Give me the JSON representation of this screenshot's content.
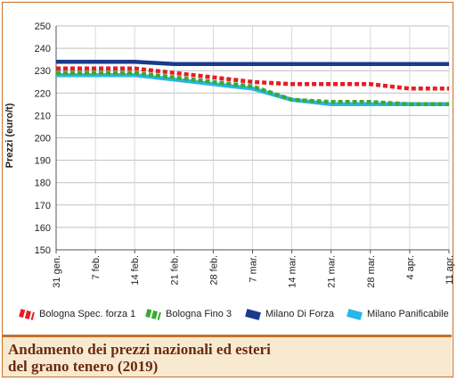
{
  "caption": "Andamento dei prezzi nazionali ed esteri\ndel grano tenero (2019)",
  "chart_data": {
    "type": "line",
    "categories": [
      "31 gen.",
      "7 feb.",
      "14 feb.",
      "21 feb.",
      "28 feb.",
      "7 mar.",
      "14 mar.",
      "21 mar.",
      "28 mar.",
      "4 apr.",
      "11 apr."
    ],
    "ylabel": "Prezzi (euro/t)",
    "xlabel": "",
    "ylim": [
      150,
      250
    ],
    "yticks": [
      150,
      160,
      170,
      180,
      190,
      200,
      210,
      220,
      230,
      240,
      250
    ],
    "grid": true,
    "legend_position": "bottom",
    "series": [
      {
        "name": "Bologna Spec. forza 1",
        "color": "#e31e24",
        "style": "dotted",
        "values": [
          231,
          231,
          231,
          229,
          227,
          225,
          224,
          224,
          224,
          222,
          222
        ]
      },
      {
        "name": "Bologna Fino 3",
        "color": "#3aa935",
        "style": "dotted",
        "values": [
          229,
          229,
          229,
          227,
          225,
          223,
          217,
          216,
          216,
          215,
          215
        ]
      },
      {
        "name": "Milano Di Forza",
        "color": "#1a3a8c",
        "style": "solid",
        "values": [
          234,
          234,
          234,
          233,
          233,
          233,
          233,
          233,
          233,
          233,
          233
        ]
      },
      {
        "name": "Milano Panificabile",
        "color": "#29b6e8",
        "style": "solid",
        "values": [
          228,
          228,
          228,
          226,
          224,
          222,
          217,
          215,
          215,
          215,
          215
        ]
      }
    ]
  }
}
